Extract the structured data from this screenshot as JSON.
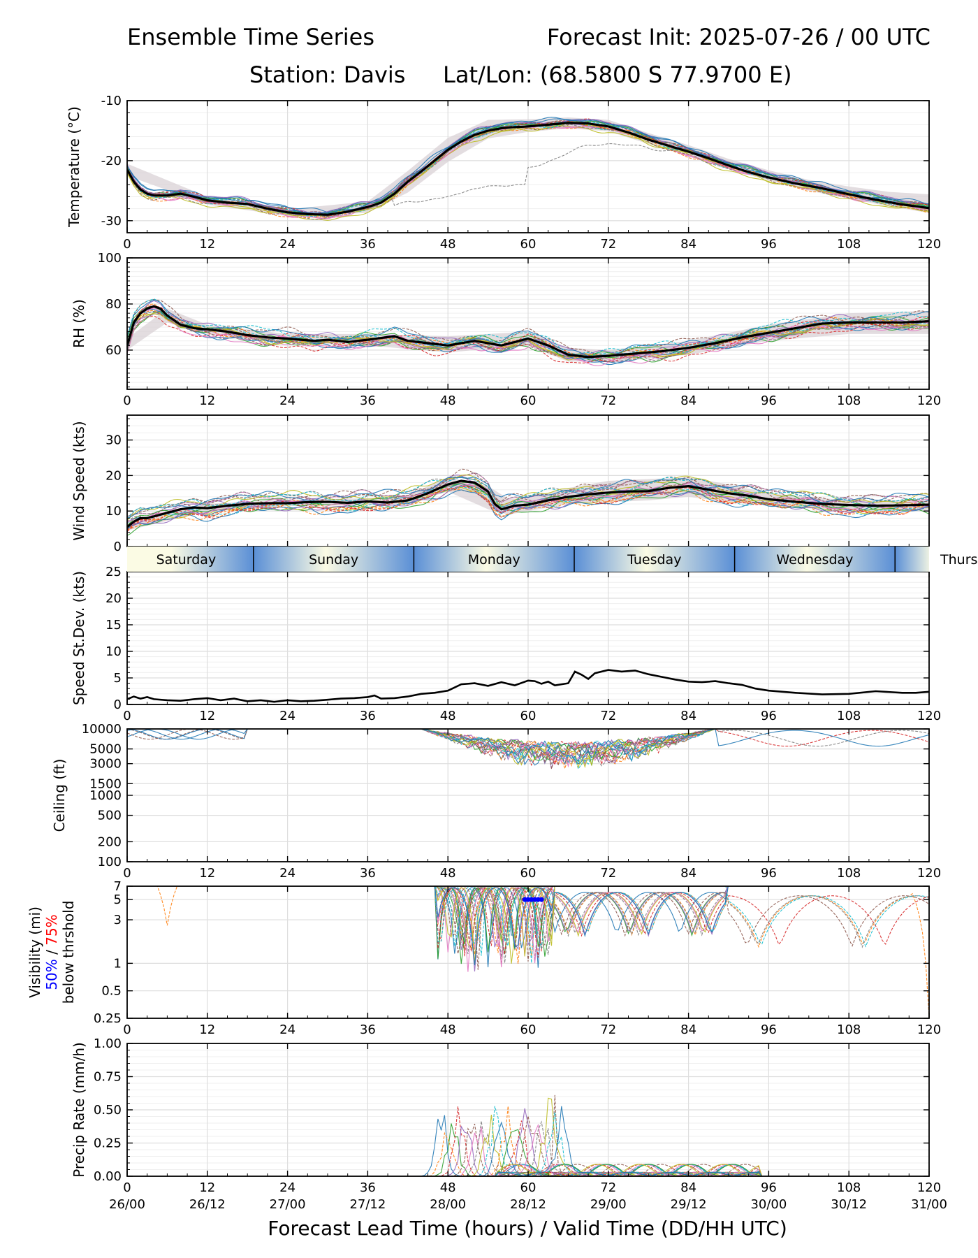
{
  "header": {
    "title_left": "Ensemble Time Series",
    "title_right": "Forecast Init: 2025-07-26 / 00 UTC",
    "station": "Station: Davis",
    "latlon": "Lat/Lon: (68.5800 S 77.9700 E)"
  },
  "xaxis": {
    "label": "Forecast Lead Time (hours) / Valid Time (DD/HH UTC)",
    "ticks": [
      0,
      12,
      24,
      36,
      48,
      60,
      72,
      84,
      96,
      108,
      120
    ],
    "valid_times": [
      "26/00",
      "26/12",
      "27/00",
      "27/12",
      "28/00",
      "28/12",
      "29/00",
      "29/12",
      "30/00",
      "30/12",
      "31/00"
    ]
  },
  "day_band": {
    "days": [
      {
        "label": "Saturday",
        "start": 0,
        "end": 18.9
      },
      {
        "label": "Sunday",
        "start": 18.9,
        "end": 42.9
      },
      {
        "label": "Monday",
        "start": 42.9,
        "end": 66.9
      },
      {
        "label": "Tuesday",
        "start": 66.9,
        "end": 90.9
      },
      {
        "label": "Wednesday",
        "start": 90.9,
        "end": 114.9
      },
      {
        "label": "Thurs",
        "start": 114.9,
        "end": 138.9
      }
    ]
  },
  "colors": {
    "members": [
      "#1f77b4",
      "#ff7f0e",
      "#2ca02c",
      "#d62728",
      "#9467bd",
      "#8c564b",
      "#e377c2",
      "#7f7f7f",
      "#bcbd22",
      "#17becf"
    ],
    "mean": "#000000",
    "spread": "#d9d2d6",
    "vis50": "#0000ff",
    "vis75": "#ff0000",
    "band_dark": "#5a8fd6",
    "band_light": "#fbfbe4"
  },
  "chart_data": [
    {
      "type": "line",
      "ylabel": "Temperature (°C)",
      "ylim": [
        -32,
        -10
      ],
      "yticks": [
        -30,
        -20,
        -10
      ],
      "grid": true,
      "mean": {
        "x": [
          0,
          1,
          2,
          3,
          4,
          6,
          8,
          10,
          12,
          15,
          18,
          21,
          24,
          27,
          30,
          33,
          36,
          38,
          40,
          42,
          44,
          46,
          48,
          50,
          52,
          54,
          56,
          58,
          60,
          63,
          66,
          69,
          72,
          75,
          78,
          81,
          84,
          87,
          90,
          93,
          96,
          100,
          104,
          108,
          112,
          116,
          120
        ],
        "y": [
          -21.5,
          -23.5,
          -24.8,
          -25.5,
          -25.8,
          -25.8,
          -25.5,
          -26.0,
          -26.6,
          -27.0,
          -27.2,
          -28.0,
          -28.6,
          -28.9,
          -29.0,
          -28.5,
          -27.7,
          -27.0,
          -25.5,
          -23.5,
          -21.8,
          -20.0,
          -18.2,
          -16.8,
          -15.7,
          -15.0,
          -14.6,
          -14.4,
          -14.3,
          -14.0,
          -13.7,
          -13.8,
          -14.3,
          -15.3,
          -16.5,
          -17.5,
          -18.5,
          -19.6,
          -20.8,
          -21.9,
          -22.8,
          -23.8,
          -24.6,
          -25.6,
          -26.5,
          -27.3,
          -27.9
        ]
      },
      "band": {
        "x": [
          0,
          12,
          24,
          36,
          42,
          48,
          54,
          60,
          66,
          72,
          78,
          84,
          90,
          96,
          102,
          108,
          114,
          120
        ],
        "lo": [
          -22.5,
          -27.3,
          -29.2,
          -28.7,
          -25.3,
          -20.2,
          -16.3,
          -15.2,
          -14.6,
          -15.1,
          -17.2,
          -19.2,
          -21.4,
          -23.3,
          -25.0,
          -26.3,
          -27.6,
          -28.7
        ],
        "hi": [
          -20.5,
          -26.0,
          -28.1,
          -26.8,
          -21.7,
          -16.2,
          -13.2,
          -13.1,
          -12.8,
          -13.2,
          -15.4,
          -17.4,
          -19.7,
          -21.6,
          -23.2,
          -24.3,
          -25.2,
          -25.6
        ]
      },
      "members": {
        "count": 21,
        "spread": 1.2
      }
    },
    {
      "type": "line",
      "ylabel": "RH (%)",
      "ylim": [
        43,
        100
      ],
      "yticks": [
        60,
        80,
        100
      ],
      "grid": true,
      "mean": {
        "x": [
          0,
          1,
          2,
          3,
          4,
          5,
          6,
          8,
          10,
          12,
          15,
          18,
          21,
          24,
          28,
          30,
          33,
          36,
          40,
          42,
          45,
          48,
          52,
          56,
          60,
          63,
          66,
          69,
          72,
          76,
          80,
          84,
          88,
          92,
          96,
          100,
          104,
          108,
          112,
          116,
          120
        ],
        "y": [
          62,
          72,
          76,
          78,
          79,
          78,
          75,
          71,
          69.5,
          69,
          68,
          66.5,
          65.5,
          65,
          64,
          64.5,
          63.5,
          64.5,
          66,
          64,
          63,
          62,
          64,
          62,
          65,
          62,
          58,
          57,
          57.5,
          58.5,
          59.5,
          61,
          63,
          65.5,
          67.5,
          69.5,
          71.5,
          72,
          72,
          72,
          72.5
        ]
      },
      "band": {
        "x": [
          0,
          6,
          12,
          24,
          36,
          48,
          60,
          66,
          72,
          84,
          96,
          108,
          120
        ],
        "lo": [
          60,
          72,
          67,
          63,
          62,
          59,
          62,
          55,
          55,
          58,
          64,
          67,
          67
        ],
        "hi": [
          65,
          78,
          71,
          67,
          67,
          66,
          68,
          61,
          60,
          64,
          71,
          76,
          77
        ]
      },
      "members": {
        "count": 21,
        "spread": 5
      }
    },
    {
      "type": "line",
      "ylabel": "Wind Speed (kts)",
      "ylim": [
        0,
        37
      ],
      "yticks": [
        0,
        10,
        20,
        30
      ],
      "grid": true,
      "mean": {
        "x": [
          0,
          1,
          2,
          3,
          4,
          6,
          8,
          10,
          12,
          15,
          18,
          21,
          24,
          27,
          30,
          33,
          36,
          39,
          42,
          45,
          48,
          50,
          52,
          54,
          55,
          56,
          57,
          58,
          60,
          63,
          66,
          69,
          72,
          75,
          78,
          81,
          84,
          87,
          90,
          93,
          96,
          100,
          104,
          108,
          112,
          116,
          120
        ],
        "y": [
          5.5,
          7,
          8,
          8,
          8.5,
          9.5,
          10.5,
          11,
          10.8,
          11.5,
          12,
          12.2,
          12.2,
          12.5,
          12.6,
          12.3,
          12.7,
          12.4,
          13,
          15,
          17.5,
          18.5,
          18,
          15.5,
          12,
          10.5,
          11,
          11.5,
          11.8,
          13,
          14,
          14.7,
          15.2,
          15.5,
          15.6,
          16.5,
          17,
          16,
          15,
          14.3,
          13.3,
          12.6,
          12,
          11.7,
          11.5,
          11.6,
          11.8
        ]
      },
      "band": {
        "x": [
          0,
          12,
          24,
          36,
          42,
          48,
          54,
          57,
          60,
          66,
          72,
          78,
          84,
          90,
          96,
          108,
          120
        ],
        "lo": [
          4.5,
          10,
          11.4,
          11.6,
          12,
          15.5,
          10.5,
          9,
          10,
          12,
          12.5,
          13,
          14,
          12.5,
          11.5,
          10,
          10
        ],
        "hi": [
          7,
          12,
          13.2,
          13.6,
          14.5,
          19.5,
          17,
          13.5,
          13.5,
          16.5,
          18.5,
          19,
          19.5,
          17.5,
          15,
          13,
          13
        ]
      },
      "members": {
        "count": 21,
        "spread": 3.5
      }
    },
    {
      "type": "line",
      "ylabel": "Speed St.Dev. (kts)",
      "ylim": [
        0,
        25
      ],
      "yticks": [
        0,
        5,
        10,
        15,
        20,
        25
      ],
      "grid": true,
      "mean": {
        "x": [
          0,
          1,
          2,
          3,
          4,
          6,
          8,
          10,
          12,
          14,
          16,
          18,
          20,
          22,
          24,
          26,
          28,
          30,
          32,
          34,
          36,
          37,
          38,
          40,
          42,
          44,
          46,
          48,
          50,
          52,
          54,
          56,
          58,
          60,
          61,
          62,
          63,
          64,
          66,
          67,
          68,
          69,
          70,
          72,
          74,
          76,
          78,
          80,
          82,
          84,
          86,
          88,
          90,
          92,
          94,
          96,
          100,
          104,
          108,
          112,
          116,
          118,
          120
        ],
        "y": [
          1.0,
          1.5,
          1.1,
          1.4,
          1.0,
          0.8,
          0.7,
          1.0,
          1.2,
          0.8,
          1.1,
          0.6,
          0.8,
          0.5,
          0.8,
          0.6,
          0.7,
          0.9,
          1.1,
          1.2,
          1.4,
          1.7,
          1.1,
          1.2,
          1.5,
          2.0,
          2.2,
          2.6,
          3.8,
          4.0,
          3.5,
          4.2,
          3.6,
          4.5,
          4.4,
          3.9,
          4.3,
          3.6,
          4.0,
          6.2,
          5.6,
          4.8,
          5.9,
          6.5,
          6.2,
          6.4,
          5.7,
          5.2,
          4.7,
          4.3,
          4.2,
          4.4,
          4.0,
          3.7,
          3.0,
          2.6,
          2.2,
          1.9,
          2.0,
          2.5,
          2.2,
          2.2,
          2.4
        ]
      }
    },
    {
      "type": "line",
      "ylabel": "Ceiling (ft)",
      "scale": "log",
      "ylim": [
        100,
        10000
      ],
      "yticks": [
        100,
        200,
        500,
        1000,
        1500,
        3000,
        5000,
        10000
      ],
      "grid": true,
      "members": {
        "count": 21
      }
    },
    {
      "type": "line",
      "ylabel": "Visibility (mi)",
      "ylabel_50": "50%",
      "ylabel_slash": " / ",
      "ylabel_75": "75%",
      "ylabel_below": "below thrshold",
      "scale": "log",
      "ylim": [
        0.25,
        7
      ],
      "yticks": [
        0.25,
        0.5,
        1,
        3,
        5,
        7
      ],
      "grid": true,
      "markers_50": {
        "x": [
          59.5,
          60,
          60.5,
          61,
          61.5,
          62
        ],
        "y": [
          5,
          5,
          5,
          5,
          5,
          5
        ]
      },
      "members": {
        "count": 21
      }
    },
    {
      "type": "line",
      "ylabel": "Precip Rate (mm/h)",
      "ylim": [
        0,
        1
      ],
      "yticks": [
        0.0,
        0.25,
        0.5,
        0.75,
        1.0
      ],
      "grid": true,
      "members": {
        "count": 21
      }
    }
  ]
}
